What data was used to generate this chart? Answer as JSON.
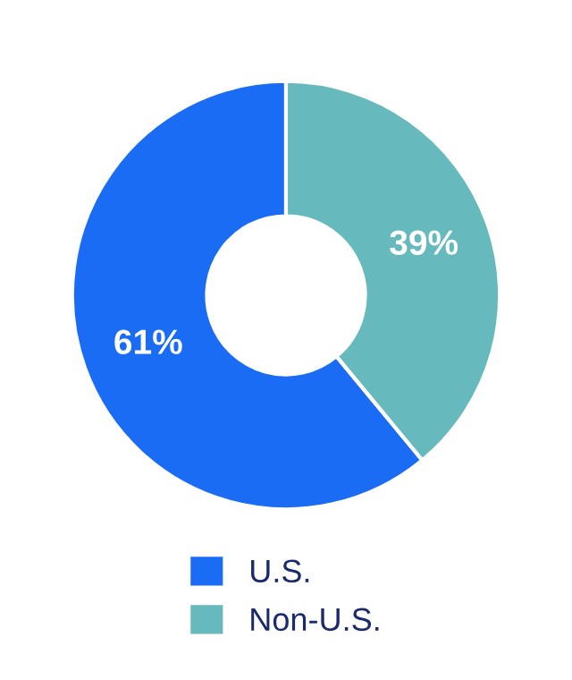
{
  "chart_data": {
    "type": "donut",
    "categories": [
      "U.S.",
      "Non-U.S."
    ],
    "values": [
      61,
      39
    ],
    "colors": [
      "#1a6cf5",
      "#66b9bc"
    ],
    "value_labels": [
      "61%",
      "39%"
    ],
    "legend": "bottom"
  }
}
